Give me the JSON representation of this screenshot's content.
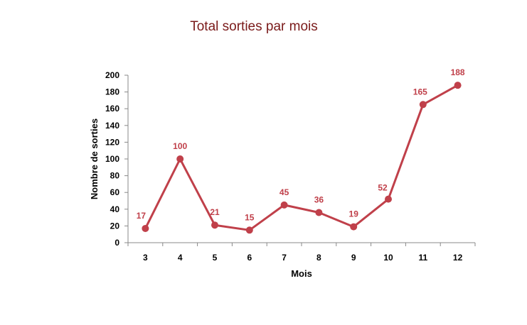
{
  "chart_data": {
    "type": "line",
    "title": "Total sorties par mois",
    "xlabel": "Mois",
    "ylabel": "Nombre de sorties",
    "categories": [
      "3",
      "4",
      "5",
      "6",
      "7",
      "8",
      "9",
      "10",
      "11",
      "12"
    ],
    "series": [
      {
        "values": [
          17,
          100,
          21,
          15,
          45,
          36,
          19,
          52,
          165,
          188
        ]
      }
    ],
    "y_ticks": [
      "0",
      "20",
      "40",
      "60",
      "80",
      "100",
      "120",
      "140",
      "160",
      "180",
      "200"
    ],
    "ylim": [
      0,
      200
    ],
    "grid": false,
    "legend": "none",
    "data_labels": true,
    "colors": {
      "line": "#c0404a",
      "title": "#7a1a1a",
      "axis": "#888888"
    }
  }
}
